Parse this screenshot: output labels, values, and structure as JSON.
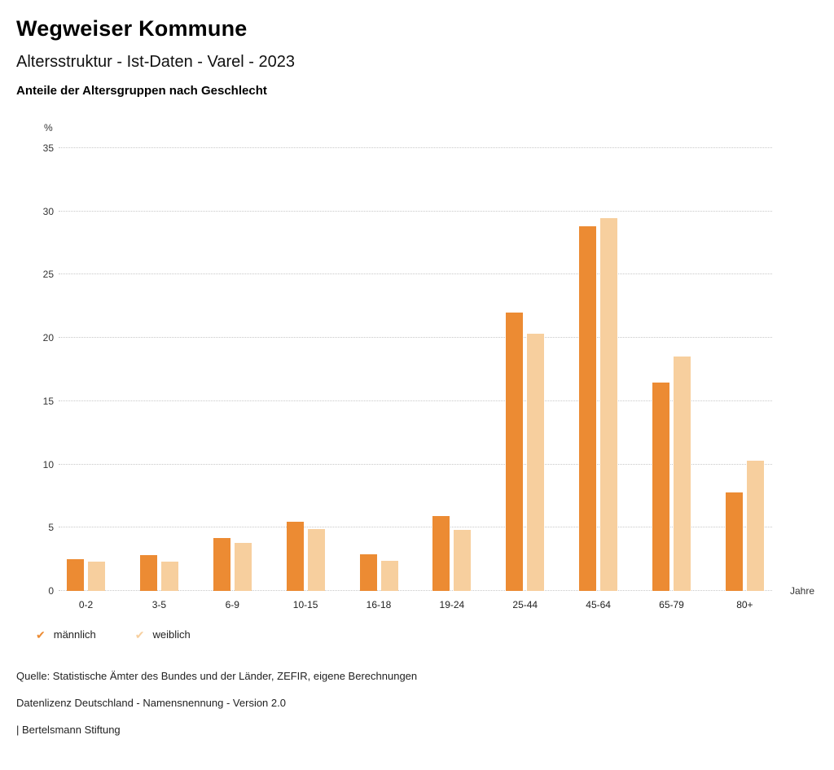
{
  "header": {
    "title": "Wegweiser Kommune",
    "subtitle": "Altersstruktur - Ist-Daten - Varel - 2023",
    "description": "Anteile der Altersgruppen nach Geschlecht"
  },
  "chart_data": {
    "type": "bar",
    "title": "Anteile der Altersgruppen nach Geschlecht",
    "categories": [
      "0-2",
      "3-5",
      "6-9",
      "10-15",
      "16-18",
      "19-24",
      "25-44",
      "45-64",
      "65-79",
      "80+"
    ],
    "series": [
      {
        "key": "maennlich",
        "name": "männlich",
        "color": "#EC8B33",
        "values": [
          2.5,
          2.8,
          4.2,
          5.5,
          2.9,
          5.9,
          22.0,
          28.8,
          16.5,
          7.8
        ]
      },
      {
        "key": "weiblich",
        "name": "weiblich",
        "color": "#F7CF9E",
        "values": [
          2.3,
          2.3,
          3.8,
          4.9,
          2.4,
          4.8,
          20.3,
          29.5,
          18.5,
          10.3
        ]
      }
    ],
    "ylabel_unit": "%",
    "xlabel_unit": "Jahre",
    "ylim": [
      0,
      35
    ],
    "ytick_step": 5,
    "grid": "dotted-horizontal",
    "legend_position": "bottom-left"
  },
  "legend": {
    "items": [
      {
        "label": "männlich",
        "color": "#EC8B33"
      },
      {
        "label": "weiblich",
        "color": "#F7CF9E"
      }
    ]
  },
  "footer": {
    "lines": [
      "Quelle: Statistische Ämter des Bundes und der Länder, ZEFIR, eigene Berechnungen",
      "Datenlizenz Deutschland - Namensnennung - Version 2.0",
      "| Bertelsmann Stiftung"
    ]
  }
}
